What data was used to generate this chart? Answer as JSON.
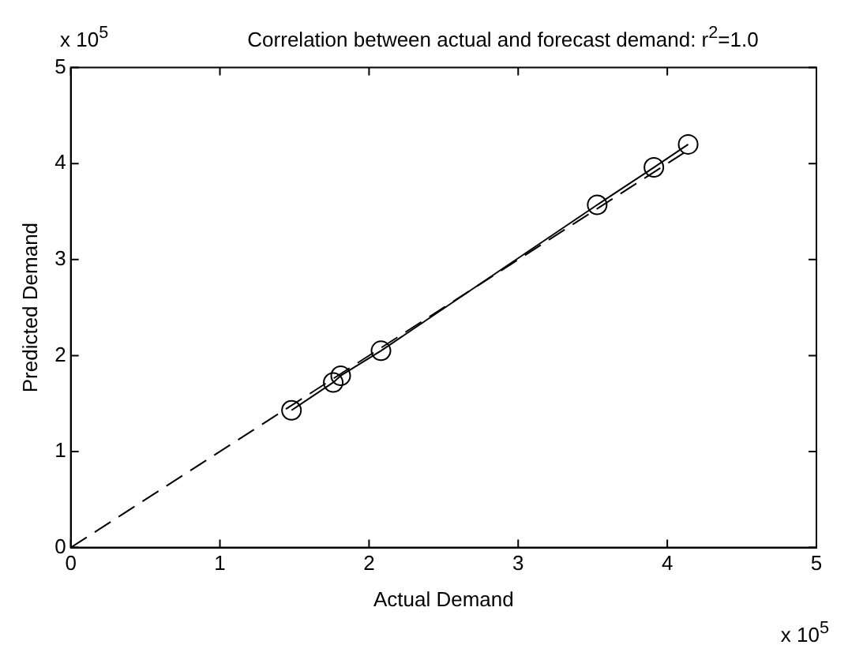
{
  "chart_data": {
    "type": "scatter",
    "title": "Correlation between actual and forecast demand: r$^{2}$=1.0",
    "xlabel": "Actual Demand",
    "ylabel": "Predicted Demand",
    "annotations": [
      "x 10$^{5}$",
      "x 10$^{5}$"
    ],
    "series": [
      {
        "type": "line",
        "color": "#000000",
        "marker": "circle",
        "line_style": "solid",
        "x": [
          1.48,
          1.76,
          1.81,
          2.08,
          3.53,
          3.91,
          4.14
        ],
        "values": [
          1.43,
          1.72,
          1.79,
          2.05,
          3.57,
          3.96,
          4.2
        ]
      },
      {
        "type": "line",
        "color": "#000000",
        "marker": "none",
        "line_style": "dashed",
        "x": [
          0,
          4.14
        ],
        "values": [
          0,
          4.14
        ]
      }
    ],
    "xlim": [
      0,
      5
    ],
    "xticks": [
      0,
      1,
      2,
      3,
      4,
      5
    ],
    "ylim": [
      0,
      5
    ],
    "yticks": [
      0,
      1,
      2,
      3,
      4,
      5
    ],
    "grid": false,
    "legend": false
  }
}
